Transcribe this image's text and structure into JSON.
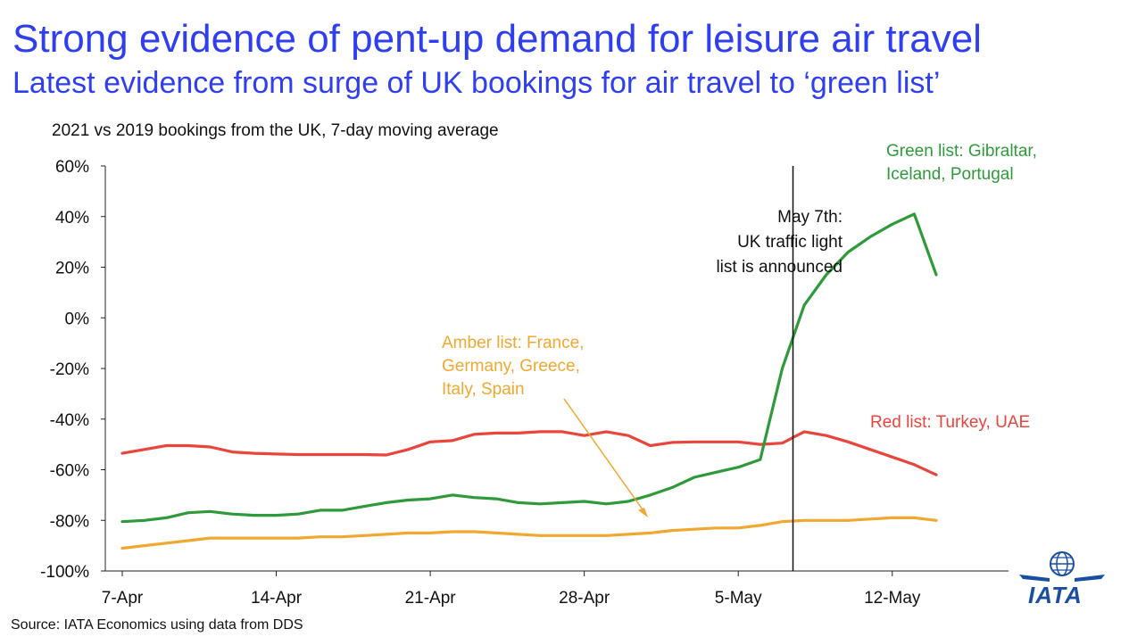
{
  "title": "Strong evidence of pent-up demand for leisure air travel",
  "subtitle": "Latest evidence from surge of UK bookings for air travel to ‘green list’",
  "source": "Source: IATA Economics using data from DDS",
  "logo_text": "IATA",
  "chart_data": {
    "type": "line",
    "title": "2021 vs 2019 bookings from the UK, 7-day moving average",
    "ylim": [
      -100,
      60
    ],
    "y_ticks": [
      60,
      40,
      20,
      0,
      -20,
      -40,
      -60,
      -80,
      -100
    ],
    "y_tick_labels": [
      "60%",
      "40%",
      "20%",
      "0%",
      "-20%",
      "-40%",
      "-60%",
      "-80%",
      "-100%"
    ],
    "x_range": [
      0,
      40
    ],
    "x_ticks": [
      0,
      7,
      14,
      21,
      28,
      35
    ],
    "x_tick_labels": [
      "7-Apr",
      "14-Apr",
      "21-Apr",
      "28-Apr",
      "5-May",
      "12-May"
    ],
    "x_dates": [
      "7-Apr",
      "8-Apr",
      "9-Apr",
      "10-Apr",
      "11-Apr",
      "12-Apr",
      "13-Apr",
      "14-Apr",
      "15-Apr",
      "16-Apr",
      "17-Apr",
      "18-Apr",
      "19-Apr",
      "20-Apr",
      "21-Apr",
      "22-Apr",
      "23-Apr",
      "24-Apr",
      "25-Apr",
      "26-Apr",
      "27-Apr",
      "28-Apr",
      "29-Apr",
      "30-Apr",
      "1-May",
      "2-May",
      "3-May",
      "4-May",
      "5-May",
      "6-May",
      "7-May",
      "8-May",
      "9-May",
      "10-May",
      "11-May",
      "12-May",
      "13-May",
      "14-May"
    ],
    "grid": false,
    "series": [
      {
        "name": "Red list: Turkey, UAE",
        "color": "#e8453c",
        "values": [
          -53.5,
          -52,
          -50.5,
          -50.5,
          -51,
          -53,
          -53.5,
          -53.8,
          -54,
          -54,
          -54,
          -54,
          -54.2,
          -52,
          -49,
          -48.5,
          -46,
          -45.5,
          -45.5,
          -45,
          -45,
          -46.5,
          -45,
          -46.5,
          -50.5,
          -49.2,
          -49,
          -49,
          -49,
          -50,
          -49.5,
          -45,
          -46.5,
          -49,
          -52,
          -55,
          -58,
          -62
        ]
      },
      {
        "name": "Green list: Gibraltar, Iceland, Portugal",
        "color": "#2e9a3a",
        "values": [
          -80.5,
          -80,
          -79,
          -77,
          -76.5,
          -77.5,
          -78,
          -78,
          -77.5,
          -76,
          -76,
          -74.5,
          -73,
          -72,
          -71.5,
          -70,
          -71,
          -71.5,
          -73,
          -73.5,
          -73,
          -72.5,
          -73.5,
          -72.5,
          -70,
          -67,
          -63,
          -61,
          -59,
          -56,
          -20,
          5,
          17,
          26,
          32,
          37,
          41,
          17
        ]
      },
      {
        "name": "Amber list: France, Germany, Greece, Italy, Spain",
        "color": "#f0a830",
        "values": [
          -91,
          -90,
          -89,
          -88,
          -87,
          -87,
          -87,
          -87,
          -87,
          -86.5,
          -86.5,
          -86,
          -85.5,
          -85,
          -85,
          -84.5,
          -84.5,
          -85,
          -85.5,
          -86,
          -86,
          -86,
          -86,
          -85.5,
          -85,
          -84,
          -83.5,
          -83,
          -83,
          -82,
          -80.5,
          -80,
          -80,
          -80,
          -79.5,
          -79,
          -79,
          -80
        ]
      }
    ],
    "event_line": {
      "date": "7-May",
      "label": [
        "May 7th:",
        "UK traffic light",
        "list is announced"
      ]
    },
    "annotations": {
      "green": [
        "Green list: Gibraltar,",
        "Iceland, Portugal"
      ],
      "amber": [
        "Amber list: France,",
        "Germany, Greece,",
        "Italy, Spain"
      ],
      "red": [
        "Red list: Turkey, UAE"
      ]
    }
  }
}
